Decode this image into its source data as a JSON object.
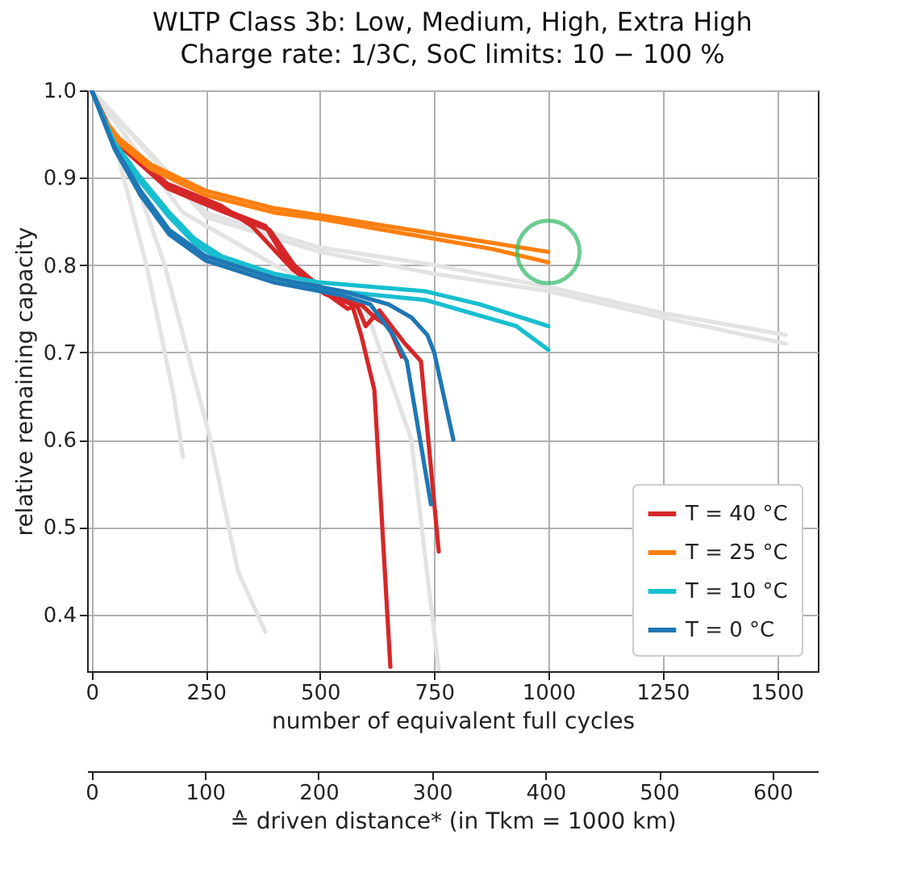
{
  "chart_data": {
    "type": "line",
    "title": "WLTP Class 3b: Low, Medium, High, Extra High",
    "subtitle": "Charge rate: 1/3C, SoC limits: 10 − 100 %",
    "xlabel": "number of equivalent full cycles",
    "ylabel": "relative remaining capacity",
    "x2label": "≙ driven distance* (in Tkm = 1000 km)",
    "xlim": [
      -10,
      1590
    ],
    "xticks": [
      0,
      250,
      500,
      750,
      1000,
      1250,
      1500
    ],
    "ylim": [
      0.335,
      1.0
    ],
    "yticks": [
      0.4,
      0.5,
      0.6,
      0.7,
      0.8,
      0.9,
      {
        "value": 1,
        "label": "1.0"
      }
    ],
    "x2lim": [
      -4,
      640
    ],
    "x2ticks": [
      0,
      100,
      200,
      300,
      400,
      500,
      600
    ],
    "grid": true,
    "legend": "bottom right",
    "line_style": "solid",
    "series": [
      {
        "color": "#e3e3e3",
        "x": [
          0,
          250,
          500,
          750,
          1000,
          1250,
          1520
        ],
        "values": [
          1,
          0.86,
          0.82,
          0.8,
          0.775,
          0.745,
          0.72
        ]
      },
      {
        "color": "#e3e3e3",
        "x": [
          0,
          250,
          500,
          750,
          1000,
          1250,
          1520
        ],
        "values": [
          1,
          0.855,
          0.815,
          0.79,
          0.77,
          0.74,
          0.71
        ]
      },
      {
        "color": "#e3e3e3",
        "x": [
          0,
          60,
          120,
          180,
          200
        ],
        "values": [
          1,
          0.92,
          0.8,
          0.65,
          0.58
        ]
      },
      {
        "color": "#e3e3e3",
        "x": [
          0,
          80,
          160,
          260,
          320,
          380
        ],
        "values": [
          1,
          0.92,
          0.8,
          0.6,
          0.45,
          0.38
        ]
      },
      {
        "color": "#e3e3e3",
        "x": [
          0,
          200,
          400,
          600,
          700,
          760
        ],
        "values": [
          1,
          0.86,
          0.8,
          0.75,
          0.6,
          0.335
        ]
      },
      {
        "name": "T = 40 °C",
        "color": "#d62728",
        "x": [
          0,
          50,
          166,
          283,
          350,
          440,
          510,
          570,
          590,
          619,
          654
        ],
        "values": [
          1,
          0.945,
          0.893,
          0.868,
          0.845,
          0.795,
          0.767,
          0.755,
          0.72,
          0.657,
          0.34
        ]
      },
      {
        "color": "#d62728",
        "x": [
          0,
          50,
          166,
          283,
          380,
          420,
          500,
          580,
          600,
          630,
          686,
          721,
          760
        ],
        "values": [
          1,
          0.943,
          0.89,
          0.865,
          0.845,
          0.81,
          0.775,
          0.755,
          0.73,
          0.748,
          0.71,
          0.69,
          0.472
        ]
      },
      {
        "color": "#d62728",
        "x": [
          0,
          50,
          166,
          283,
          390,
          450,
          520,
          560,
          590,
          620,
          650,
          679
        ],
        "values": [
          1,
          0.942,
          0.888,
          0.862,
          0.84,
          0.795,
          0.765,
          0.75,
          0.755,
          0.74,
          0.73,
          0.695
        ]
      },
      {
        "name": "T = 25 °C",
        "color": "#ff7f0e",
        "x": [
          0,
          30,
          60,
          130,
          250,
          400,
          500,
          750,
          1000
        ],
        "values": [
          1,
          0.965,
          0.945,
          0.915,
          0.885,
          0.865,
          0.857,
          0.836,
          0.815
        ]
      },
      {
        "color": "#ff7f0e",
        "x": [
          0,
          30,
          60,
          130,
          250,
          400,
          500,
          750,
          880,
          1000
        ],
        "values": [
          1,
          0.962,
          0.94,
          0.91,
          0.88,
          0.86,
          0.853,
          0.83,
          0.818,
          0.803
        ]
      },
      {
        "name": "T = 10 °C",
        "color": "#17becf",
        "x": [
          0,
          50,
          107,
          170,
          225,
          285,
          400,
          500,
          730,
          850,
          1000
        ],
        "values": [
          1,
          0.94,
          0.9,
          0.86,
          0.83,
          0.81,
          0.79,
          0.78,
          0.77,
          0.755,
          0.73
        ]
      },
      {
        "color": "#17becf",
        "x": [
          0,
          50,
          107,
          170,
          225,
          285,
          400,
          500,
          730,
          930,
          1000
        ],
        "values": [
          1,
          0.938,
          0.895,
          0.855,
          0.825,
          0.805,
          0.785,
          0.772,
          0.76,
          0.73,
          0.703
        ]
      },
      {
        "name": "T = 0 °C",
        "color": "#1f77b4",
        "x": [
          0,
          50,
          107,
          170,
          250,
          400,
          550,
          650,
          700,
          735,
          750,
          792
        ],
        "values": [
          1,
          0.935,
          0.885,
          0.84,
          0.81,
          0.785,
          0.77,
          0.755,
          0.74,
          0.72,
          0.7,
          0.6
        ]
      },
      {
        "color": "#1f77b4",
        "x": [
          0,
          50,
          107,
          170,
          250,
          400,
          550,
          610,
          660,
          690,
          743
        ],
        "values": [
          1,
          0.933,
          0.88,
          0.835,
          0.805,
          0.78,
          0.765,
          0.755,
          0.72,
          0.69,
          0.526
        ]
      }
    ]
  }
}
